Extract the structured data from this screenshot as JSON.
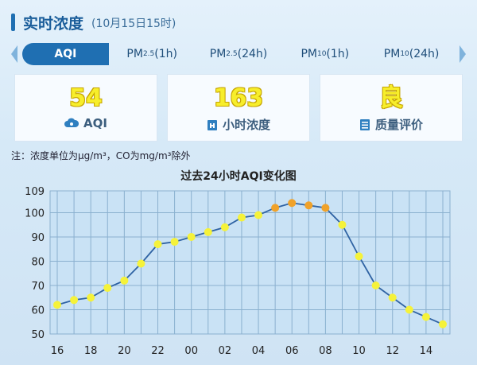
{
  "header": {
    "title": "实时浓度",
    "subtitle": "(10月15日15时)"
  },
  "tabs": [
    {
      "label": "AQI",
      "sub": "",
      "suffix": "",
      "active": true
    },
    {
      "label": "PM",
      "sub": "2.5",
      "suffix": "(1h)",
      "active": false
    },
    {
      "label": "PM",
      "sub": "2.5",
      "suffix": "(24h)",
      "active": false
    },
    {
      "label": "PM",
      "sub": "10",
      "suffix": "(1h)",
      "active": false
    },
    {
      "label": "PM",
      "sub": "10",
      "suffix": "(24h)",
      "active": false
    }
  ],
  "cards": [
    {
      "value": "54",
      "label": "AQI",
      "icon": "aqi-icon"
    },
    {
      "value": "163",
      "label": "小时浓度",
      "icon": "hourly-concentration-icon"
    },
    {
      "value": "良",
      "label": "质量评价",
      "icon": "quality-rating-icon"
    }
  ],
  "note": "注：浓度单位为μg/m³，CO为mg/m³除外",
  "colors": {
    "accent": "#1f6fb2",
    "good": "#f5f23a",
    "moderate": "#f0a22a",
    "line": "#2f63a3",
    "grid": "#8ab0cf",
    "plot_bg": "#c9e2f5"
  },
  "chart_data": {
    "type": "line",
    "title": "过去24小时AQI变化图",
    "xlabel": "",
    "ylabel": "",
    "x_ticks": [
      "16",
      "18",
      "20",
      "22",
      "00",
      "02",
      "04",
      "06",
      "08",
      "10",
      "12",
      "14"
    ],
    "y_ticks": [
      50,
      60,
      70,
      80,
      90,
      100,
      109
    ],
    "ylim": [
      50,
      109
    ],
    "grid": true,
    "series": [
      {
        "x": [
          "16",
          "17",
          "18",
          "19",
          "20",
          "21",
          "22",
          "23",
          "00",
          "01",
          "02",
          "03",
          "04",
          "05",
          "06",
          "07",
          "08",
          "09",
          "10",
          "11",
          "12",
          "13",
          "14",
          "15"
        ],
        "values": [
          62,
          64,
          65,
          69,
          72,
          79,
          87,
          88,
          90,
          92,
          94,
          98,
          99,
          102,
          104,
          103,
          102,
          95,
          82,
          70,
          65,
          60,
          57,
          54
        ],
        "levels": [
          "good",
          "good",
          "good",
          "good",
          "good",
          "good",
          "good",
          "good",
          "good",
          "good",
          "good",
          "good",
          "good",
          "moderate",
          "moderate",
          "moderate",
          "moderate",
          "good",
          "good",
          "good",
          "good",
          "good",
          "good",
          "good"
        ]
      }
    ]
  }
}
